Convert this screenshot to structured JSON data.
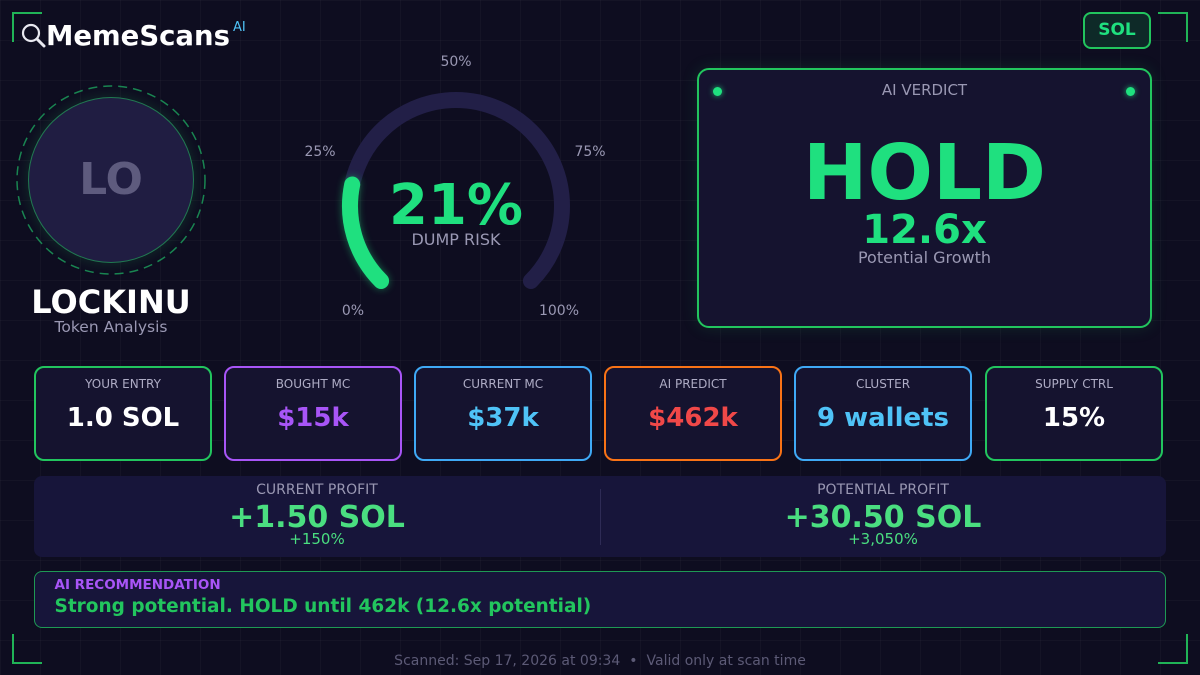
{
  "brand": {
    "name": "MemeScans",
    "badge": "AI",
    "icon": "magnifying-glass"
  },
  "chain": {
    "label": "SOL"
  },
  "token": {
    "initials": "LO",
    "name": "LOCKINU",
    "subtitle": "Token Analysis"
  },
  "dump_risk": {
    "value": 21,
    "display": "21%",
    "label": "DUMP RISK",
    "scale": [
      "0%",
      "25%",
      "50%",
      "75%",
      "100%"
    ]
  },
  "verdict": {
    "heading": "AI VERDICT",
    "action": "HOLD",
    "multiplier": "12.6x",
    "multiplier_label": "Potential Growth"
  },
  "stats": [
    {
      "label": "YOUR ENTRY",
      "value": "1.0 SOL",
      "value_color": "#ffffff",
      "border_color": "#22c55e"
    },
    {
      "label": "BOUGHT MC",
      "value": "$15k",
      "value_color": "#a855f7",
      "border_color": "#a855f7"
    },
    {
      "label": "CURRENT MC",
      "value": "$37k",
      "value_color": "#4fc3f7",
      "border_color": "#3fa9f5"
    },
    {
      "label": "AI PREDICT",
      "value": "$462k",
      "value_color": "#f04848",
      "border_color": "#f97316"
    },
    {
      "label": "CLUSTER",
      "value": "9 wallets",
      "value_color": "#4fc3f7",
      "border_color": "#3fa9f5"
    },
    {
      "label": "SUPPLY CTRL",
      "value": "15%",
      "value_color": "#ffffff",
      "border_color": "#22c55e"
    }
  ],
  "profits": [
    {
      "label": "CURRENT PROFIT",
      "value": "+1.50 SOL",
      "percent": "+150%"
    },
    {
      "label": "POTENTIAL PROFIT",
      "value": "+30.50 SOL",
      "percent": "+3,050%"
    }
  ],
  "recommendation": {
    "heading": "AI RECOMMENDATION",
    "text": "Strong potential. HOLD until 462k (12.6x potential)"
  },
  "footer": {
    "scanned": "Scanned: Sep 17, 2026 at 09:34",
    "separator": "•",
    "note": "Valid only at scan time"
  },
  "colors": {
    "background": "#0e0d20",
    "panel": "#15132f",
    "panel_alt": "#17153a",
    "accent_green": "#1fe07f",
    "border_green": "#22c55e",
    "profit_green": "#4ade80",
    "text_muted": "#9a98b3",
    "label_text": "#aeacc5",
    "footer_text": "#5c5a76",
    "gauge_track": "#221f47",
    "brand_ai": "#4fc3f7",
    "purple": "#a855f7",
    "avatar_fill": "#201d42",
    "avatar_text": "#5e5b7e",
    "badge_fill": "#0e2a28"
  }
}
